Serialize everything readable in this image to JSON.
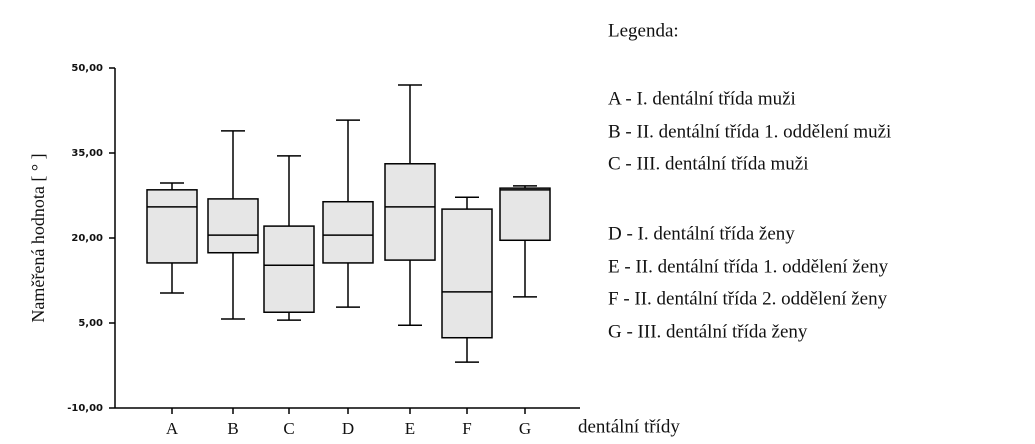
{
  "chart_data": {
    "type": "box",
    "ylabel": "Naměřená hodnota [ ° ]",
    "xlabel": "dentální třídy",
    "categories": [
      "A",
      "B",
      "C",
      "D",
      "E",
      "F",
      "G"
    ],
    "min": [
      10.3,
      5.7,
      5.5,
      7.8,
      4.6,
      -1.9,
      9.6
    ],
    "q1": [
      15.6,
      17.4,
      6.9,
      15.6,
      16.1,
      2.4,
      19.6
    ],
    "median": [
      25.5,
      20.5,
      15.2,
      20.5,
      25.5,
      10.5,
      28.5
    ],
    "q3": [
      28.5,
      26.9,
      22.1,
      26.4,
      33.1,
      25.1,
      28.8
    ],
    "max": [
      29.7,
      38.9,
      34.5,
      40.8,
      47.0,
      27.2,
      29.2
    ],
    "color": "#e6e6e6",
    "ylim": [
      -10,
      50
    ],
    "yticks": [
      {
        "value": -10,
        "label": "-10,00"
      },
      {
        "value": 5,
        "label": "5,00"
      },
      {
        "value": 20,
        "label": "20,00"
      },
      {
        "value": 35,
        "label": "35,00"
      },
      {
        "value": 50,
        "label": "50,00"
      }
    ],
    "legend": {
      "title": "Legenda:",
      "items": [
        "A - I. dentální třída muži",
        "B - II. dentální třída 1. oddělení muži",
        "C - III. dentální třída muži",
        "D - I. dentální třída ženy",
        "E - II. dentální třída 1. oddělení ženy",
        "F - II. dentální třída 2. oddělení ženy",
        "G - III. dentální třída ženy"
      ]
    }
  }
}
